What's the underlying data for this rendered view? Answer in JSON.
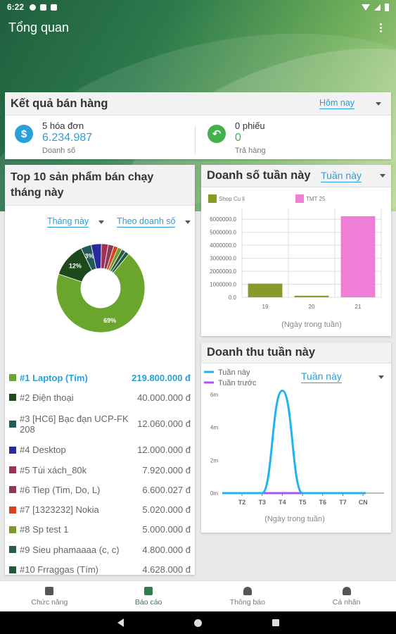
{
  "status_bar": {
    "time": "6:22"
  },
  "app_bar": {
    "title": "Tổng quan"
  },
  "sales_card": {
    "title": "Kết quả bán hàng",
    "period": "Hôm nay",
    "invoices": {
      "count_label": "5 hóa đơn",
      "value": "6.234.987",
      "caption": "Doanh số",
      "icon": "dollar-icon",
      "color": "#29a0d9"
    },
    "returns": {
      "count_label": "0 phiếu",
      "value": "0",
      "caption": "Trả hàng",
      "icon": "return-icon",
      "color": "#43b14b"
    }
  },
  "top10_card": {
    "title": "Top 10 sản phẩm bán chạy tháng này",
    "filter_period": "Tháng này",
    "filter_metric": "Theo doanh số",
    "donut_labels": {
      "big": "69%",
      "second": "12%",
      "third": "3%"
    },
    "items": [
      {
        "name": "#1 Laptop (Tím)",
        "value": "219.800.000 đ",
        "color": "#6aa52d"
      },
      {
        "name": "#2 Điện thoại",
        "value": "40.000.000 đ",
        "color": "#1c4a1c"
      },
      {
        "name": "#3 [HC6] Bạc đạn UCP-FK 208",
        "value": "12.060.000 đ",
        "color": "#245a55"
      },
      {
        "name": "#4 Desktop",
        "value": "12.000.000 đ",
        "color": "#2a2aa0"
      },
      {
        "name": "#5 Túi xách_80k",
        "value": "7.920.000 đ",
        "color": "#a0305a"
      },
      {
        "name": "#6 Tiep (Tim, Do, L)",
        "value": "6.600.027 đ",
        "color": "#8a3a55"
      },
      {
        "name": "#7 [1323232] Nokia",
        "value": "5.020.000 đ",
        "color": "#d8401e"
      },
      {
        "name": "#8 Sp test 1",
        "value": "5.000.000 đ",
        "color": "#7a9a28"
      },
      {
        "name": "#9 Sieu phamaaaa (c, c)",
        "value": "4.800.000 đ",
        "color": "#2a5a4a"
      },
      {
        "name": "#10 Frraggas (Tím)",
        "value": "4.628.000 đ",
        "color": "#1f5a3a"
      }
    ]
  },
  "weekly_sales_card": {
    "title": "Doanh số tuần này",
    "period": "Tuần này",
    "xlabel": "(Ngày trong tuần)"
  },
  "weekly_revenue_card": {
    "title": "Doanh thu tuần này",
    "period": "Tuần này",
    "xlabel": "(Ngày trong tuần)"
  },
  "chart_data": [
    {
      "type": "bar",
      "categories": [
        "19",
        "20",
        "21"
      ],
      "series": [
        {
          "name": "Shop Cu li",
          "color": "#8a9a2a",
          "values": [
            1050000,
            120000,
            0
          ]
        },
        {
          "name": "TMT 25",
          "color": "#ee7ed6",
          "values": [
            0,
            0,
            6234987
          ]
        }
      ],
      "yticks": [
        "0.0",
        "1000000.0",
        "2000000.0",
        "3000000.0",
        "4000000.0",
        "5000000.0",
        "6000000.0"
      ],
      "ylim": [
        0,
        6500000
      ],
      "xlabel": "(Ngày trong tuần)",
      "legend": "top-left"
    },
    {
      "type": "line",
      "categories": [
        "T2",
        "T3",
        "T4",
        "T5",
        "T6",
        "T7",
        "CN"
      ],
      "series": [
        {
          "name": "Tuần này",
          "color": "#1fb3f0",
          "values": [
            0,
            0,
            6234987,
            0,
            0,
            0,
            0
          ]
        },
        {
          "name": "Tuần trước",
          "color": "#a855f7",
          "values": [
            0,
            0,
            0,
            0,
            0,
            0,
            0
          ]
        }
      ],
      "yticks": [
        "0m",
        "2m",
        "4m",
        "6m"
      ],
      "ylim": [
        0,
        6500000
      ],
      "xlabel": "(Ngày trong tuần)",
      "legend": "top-left"
    }
  ],
  "bottom_nav": [
    {
      "label": "Chức năng",
      "icon": "home-icon",
      "active": false
    },
    {
      "label": "Báo cáo",
      "icon": "report-icon",
      "active": true
    },
    {
      "label": "Thông báo",
      "icon": "bell-icon",
      "active": false
    },
    {
      "label": "Cá nhân",
      "icon": "person-icon",
      "active": false
    }
  ]
}
